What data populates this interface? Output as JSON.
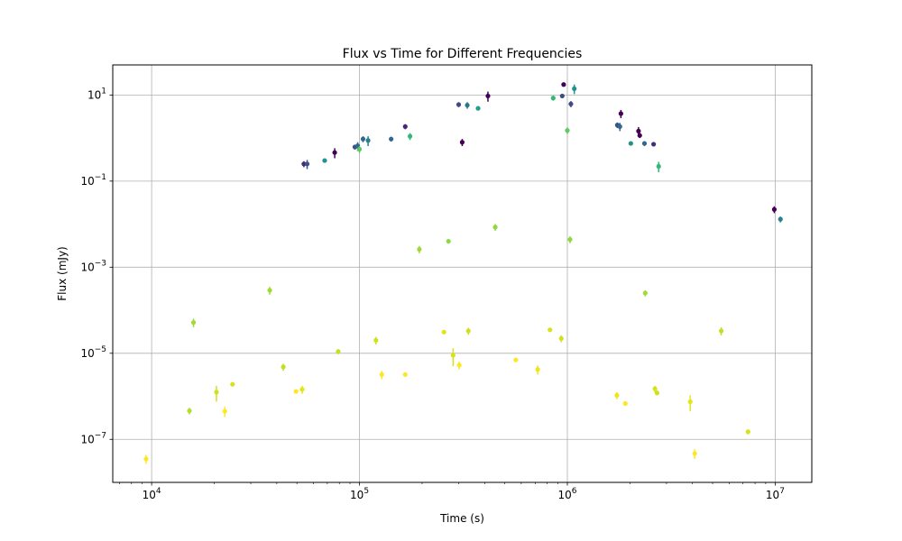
{
  "chart_data": {
    "type": "scatter",
    "title": "Flux vs Time for Different Frequencies",
    "xlabel": "Time (s)",
    "ylabel": "Flux (mJy)",
    "x_scale": "log",
    "y_scale": "log",
    "xlim": [
      6500,
      15000000
    ],
    "ylim": [
      1e-08,
      50
    ],
    "grid": true,
    "x_ticks": [
      {
        "value": 10000,
        "base": "10",
        "exp": "4"
      },
      {
        "value": 100000,
        "base": "10",
        "exp": "5"
      },
      {
        "value": 1000000,
        "base": "10",
        "exp": "6"
      },
      {
        "value": 10000000,
        "base": "10",
        "exp": "7"
      }
    ],
    "y_ticks": [
      {
        "value": 1e-07,
        "base": "10",
        "exp": "−7"
      },
      {
        "value": 1e-05,
        "base": "10",
        "exp": "−5"
      },
      {
        "value": 0.001,
        "base": "10",
        "exp": "−3"
      },
      {
        "value": 0.1,
        "base": "10",
        "exp": "−1"
      },
      {
        "value": 10,
        "base": "10",
        "exp": "1"
      }
    ],
    "points": [
      {
        "x": 54000,
        "y": 0.25,
        "ylo": 0.21,
        "yhi": 0.29,
        "color": "#472c7a"
      },
      {
        "x": 56000,
        "y": 0.25,
        "ylo": 0.19,
        "yhi": 0.31,
        "color": "#3b528b"
      },
      {
        "x": 68000,
        "y": 0.3,
        "ylo": 0.27,
        "yhi": 0.33,
        "color": "#21918c"
      },
      {
        "x": 76000,
        "y": 0.46,
        "ylo": 0.34,
        "yhi": 0.58,
        "color": "#440154"
      },
      {
        "x": 95000,
        "y": 0.62,
        "ylo": 0.54,
        "yhi": 0.7,
        "color": "#3b528b"
      },
      {
        "x": 98000,
        "y": 0.66,
        "ylo": 0.5,
        "yhi": 0.8,
        "color": "#31688e"
      },
      {
        "x": 100000,
        "y": 0.55,
        "ylo": 0.45,
        "yhi": 0.65,
        "color": "#5ec962"
      },
      {
        "x": 104000,
        "y": 0.95,
        "ylo": 0.8,
        "yhi": 1.1,
        "color": "#31688e"
      },
      {
        "x": 110000,
        "y": 0.88,
        "ylo": 0.65,
        "yhi": 1.1,
        "color": "#26828e"
      },
      {
        "x": 142000,
        "y": 0.95,
        "ylo": 0.83,
        "yhi": 1.07,
        "color": "#31688e"
      },
      {
        "x": 166000,
        "y": 1.85,
        "ylo": 1.6,
        "yhi": 2.1,
        "color": "#482878"
      },
      {
        "x": 175000,
        "y": 1.1,
        "ylo": 0.9,
        "yhi": 1.3,
        "color": "#35b779"
      },
      {
        "x": 300000,
        "y": 6.0,
        "ylo": 5.2,
        "yhi": 6.8,
        "color": "#3e4a89"
      },
      {
        "x": 312000,
        "y": 0.8,
        "ylo": 0.65,
        "yhi": 0.95,
        "color": "#440154"
      },
      {
        "x": 330000,
        "y": 5.8,
        "ylo": 4.8,
        "yhi": 6.8,
        "color": "#2a788e"
      },
      {
        "x": 372000,
        "y": 4.9,
        "ylo": 4.4,
        "yhi": 5.4,
        "color": "#1f9e89"
      },
      {
        "x": 415000,
        "y": 9.5,
        "ylo": 7.0,
        "yhi": 12.0,
        "color": "#440154"
      },
      {
        "x": 855000,
        "y": 8.5,
        "ylo": 7.4,
        "yhi": 9.6,
        "color": "#35b779"
      },
      {
        "x": 945000,
        "y": 9.5,
        "ylo": 8.5,
        "yhi": 10.5,
        "color": "#3e4a89"
      },
      {
        "x": 960000,
        "y": 17.5,
        "ylo": 16.0,
        "yhi": 19.0,
        "color": "#440154"
      },
      {
        "x": 1000000,
        "y": 1.5,
        "ylo": 1.25,
        "yhi": 1.75,
        "color": "#5ec962"
      },
      {
        "x": 1040000,
        "y": 6.2,
        "ylo": 5.2,
        "yhi": 7.2,
        "color": "#3e4a89"
      },
      {
        "x": 1080000,
        "y": 14.0,
        "ylo": 10.5,
        "yhi": 17.5,
        "color": "#21918c"
      },
      {
        "x": 1740000,
        "y": 2.0,
        "ylo": 1.7,
        "yhi": 2.3,
        "color": "#3b528b"
      },
      {
        "x": 1790000,
        "y": 1.85,
        "ylo": 1.45,
        "yhi": 2.25,
        "color": "#31688e"
      },
      {
        "x": 1810000,
        "y": 3.7,
        "ylo": 2.9,
        "yhi": 4.5,
        "color": "#440154"
      },
      {
        "x": 2020000,
        "y": 0.75,
        "ylo": 0.68,
        "yhi": 0.82,
        "color": "#21918c"
      },
      {
        "x": 2200000,
        "y": 1.45,
        "ylo": 1.1,
        "yhi": 1.8,
        "color": "#440154"
      },
      {
        "x": 2230000,
        "y": 1.15,
        "ylo": 1.0,
        "yhi": 1.3,
        "color": "#440154"
      },
      {
        "x": 2350000,
        "y": 0.75,
        "ylo": 0.65,
        "yhi": 0.85,
        "color": "#31688e"
      },
      {
        "x": 2600000,
        "y": 0.72,
        "ylo": 0.64,
        "yhi": 0.8,
        "color": "#472c7a"
      },
      {
        "x": 2750000,
        "y": 0.22,
        "ylo": 0.16,
        "yhi": 0.28,
        "color": "#35b779"
      },
      {
        "x": 9900000,
        "y": 0.022,
        "ylo": 0.018,
        "yhi": 0.026,
        "color": "#440154"
      },
      {
        "x": 10600000,
        "y": 0.013,
        "ylo": 0.011,
        "yhi": 0.015,
        "color": "#26828e"
      },
      {
        "x": 9400,
        "y": 3.5e-08,
        "ylo": 2.7e-08,
        "yhi": 4.3e-08,
        "color": "#fde725"
      },
      {
        "x": 15200,
        "y": 4.6e-07,
        "ylo": 3.8e-07,
        "yhi": 5.4e-07,
        "color": "#b5de2b"
      },
      {
        "x": 15900,
        "y": 5.2e-05,
        "ylo": 4e-05,
        "yhi": 6.4e-05,
        "color": "#a0da39"
      },
      {
        "x": 20500,
        "y": 1.25e-06,
        "ylo": 7.5e-07,
        "yhi": 1.75e-06,
        "color": "#d0e11c"
      },
      {
        "x": 22500,
        "y": 4.5e-07,
        "ylo": 3.3e-07,
        "yhi": 5.7e-07,
        "color": "#fde725"
      },
      {
        "x": 24500,
        "y": 1.9e-06,
        "ylo": 1.7e-06,
        "yhi": 2.1e-06,
        "color": "#d8e219"
      },
      {
        "x": 37000,
        "y": 0.00029,
        "ylo": 0.00023,
        "yhi": 0.00035,
        "color": "#a0da39"
      },
      {
        "x": 43000,
        "y": 4.8e-06,
        "ylo": 3.9e-06,
        "yhi": 5.7e-06,
        "color": "#c0df25"
      },
      {
        "x": 49500,
        "y": 1.3e-06,
        "ylo": 1.2e-06,
        "yhi": 1.4e-06,
        "color": "#fde725"
      },
      {
        "x": 53000,
        "y": 1.45e-06,
        "ylo": 1.15e-06,
        "yhi": 1.75e-06,
        "color": "#e5e419"
      },
      {
        "x": 79000,
        "y": 1.1e-05,
        "ylo": 9.5e-06,
        "yhi": 1.25e-05,
        "color": "#c8e020"
      },
      {
        "x": 120000,
        "y": 2e-05,
        "ylo": 1.6e-05,
        "yhi": 2.4e-05,
        "color": "#cde11d"
      },
      {
        "x": 128000,
        "y": 3.2e-06,
        "ylo": 2.5e-06,
        "yhi": 3.9e-06,
        "color": "#fde725"
      },
      {
        "x": 166000,
        "y": 3.2e-06,
        "ylo": 3e-06,
        "yhi": 3.4e-06,
        "color": "#fde725"
      },
      {
        "x": 194000,
        "y": 0.0026,
        "ylo": 0.0021,
        "yhi": 0.0031,
        "color": "#a0da39"
      },
      {
        "x": 255000,
        "y": 3.1e-05,
        "ylo": 2.8e-05,
        "yhi": 3.4e-05,
        "color": "#e2e418"
      },
      {
        "x": 268000,
        "y": 0.004,
        "ylo": 0.0035,
        "yhi": 0.0045,
        "color": "#8fd744"
      },
      {
        "x": 282000,
        "y": 9e-06,
        "ylo": 5e-06,
        "yhi": 1.3e-05,
        "color": "#d8e219"
      },
      {
        "x": 302000,
        "y": 5.3e-06,
        "ylo": 4.2e-06,
        "yhi": 6.4e-06,
        "color": "#fde725"
      },
      {
        "x": 334000,
        "y": 3.3e-05,
        "ylo": 2.7e-05,
        "yhi": 3.9e-05,
        "color": "#d0e11c"
      },
      {
        "x": 450000,
        "y": 0.0085,
        "ylo": 0.007,
        "yhi": 0.01,
        "color": "#8fd744"
      },
      {
        "x": 565000,
        "y": 7e-06,
        "ylo": 6.5e-06,
        "yhi": 7.5e-06,
        "color": "#fde725"
      },
      {
        "x": 720000,
        "y": 4.2e-06,
        "ylo": 3.2e-06,
        "yhi": 5.2e-06,
        "color": "#f0e51c"
      },
      {
        "x": 825000,
        "y": 3.5e-05,
        "ylo": 3.2e-05,
        "yhi": 3.8e-05,
        "color": "#d8e219"
      },
      {
        "x": 935000,
        "y": 2.2e-05,
        "ylo": 1.8e-05,
        "yhi": 2.6e-05,
        "color": "#d0e11c"
      },
      {
        "x": 1030000,
        "y": 0.0044,
        "ylo": 0.0036,
        "yhi": 0.0052,
        "color": "#8fd744"
      },
      {
        "x": 1730000,
        "y": 1.05e-06,
        "ylo": 8.5e-07,
        "yhi": 1.25e-06,
        "color": "#f0e51c"
      },
      {
        "x": 1900000,
        "y": 6.8e-07,
        "ylo": 6.4e-07,
        "yhi": 7.2e-07,
        "color": "#fde725"
      },
      {
        "x": 2370000,
        "y": 0.00025,
        "ylo": 0.00021,
        "yhi": 0.00029,
        "color": "#a0da39"
      },
      {
        "x": 2640000,
        "y": 1.5e-06,
        "ylo": 1.25e-06,
        "yhi": 1.75e-06,
        "color": "#d8e219"
      },
      {
        "x": 2700000,
        "y": 1.2e-06,
        "ylo": 1.05e-06,
        "yhi": 1.35e-06,
        "color": "#d0e11c"
      },
      {
        "x": 3900000,
        "y": 7.5e-07,
        "ylo": 4.5e-07,
        "yhi": 1.05e-06,
        "color": "#e5e419"
      },
      {
        "x": 4100000,
        "y": 4.7e-08,
        "ylo": 3.5e-08,
        "yhi": 5.9e-08,
        "color": "#fde725"
      },
      {
        "x": 5500000,
        "y": 3.3e-05,
        "ylo": 2.6e-05,
        "yhi": 4e-05,
        "color": "#c0df25"
      },
      {
        "x": 7400000,
        "y": 1.5e-07,
        "ylo": 1.3e-07,
        "yhi": 1.7e-07,
        "color": "#d8e219"
      }
    ]
  }
}
